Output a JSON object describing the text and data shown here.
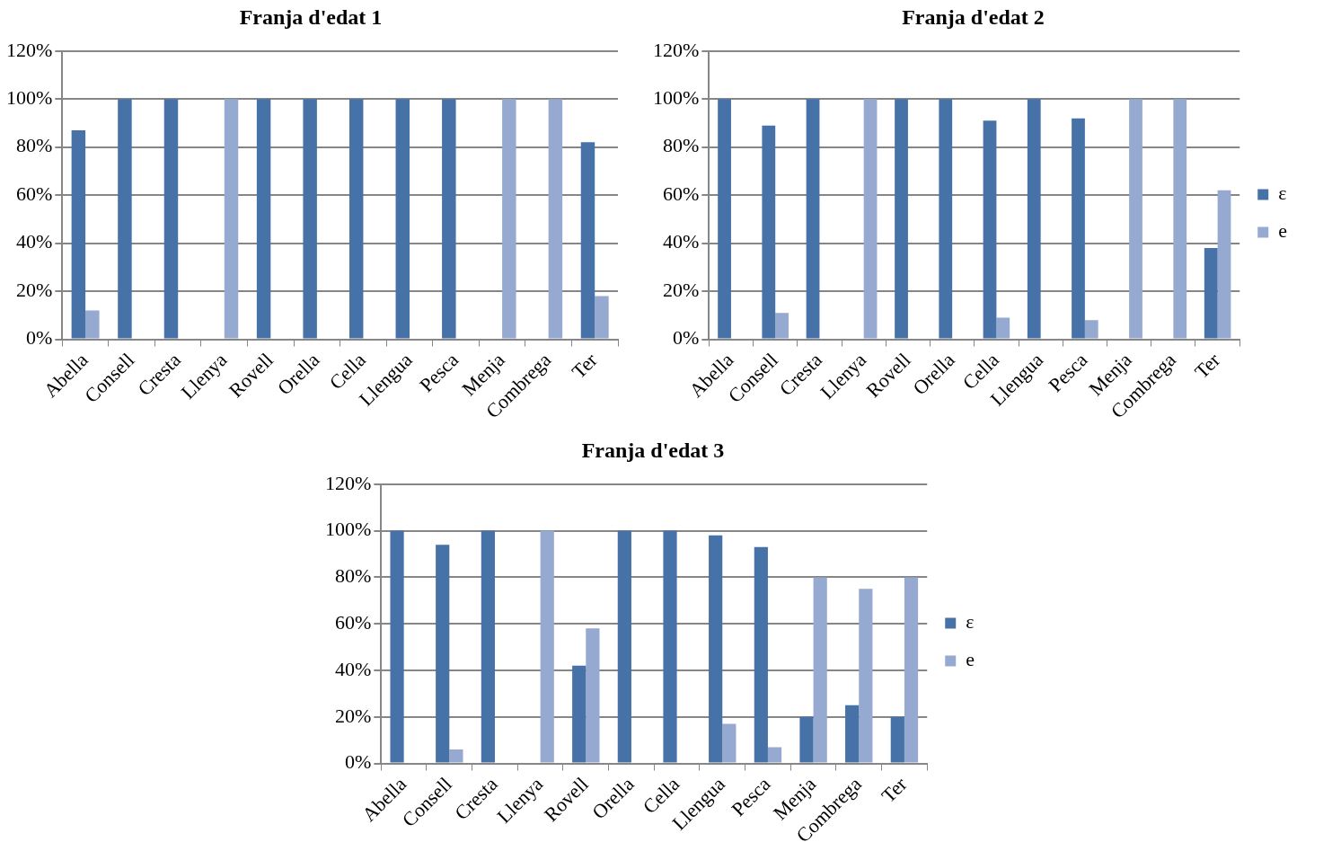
{
  "chart_data": [
    {
      "type": "bar",
      "title": "Franja d'edat 1",
      "categories": [
        "Abella",
        "Consell",
        "Cresta",
        "Llenya",
        "Rovell",
        "Orella",
        "Cella",
        "Llengua",
        "Pesca",
        "Menja",
        "Combrega",
        "Ter"
      ],
      "series": [
        {
          "color": "#4672a8",
          "values": [
            87,
            100,
            100,
            0,
            100,
            100,
            100,
            100,
            100,
            0,
            0,
            82
          ]
        },
        {
          "color": "#95a9d1",
          "values": [
            12,
            0,
            0,
            100,
            0,
            0,
            0,
            0,
            0,
            100,
            100,
            18
          ]
        }
      ],
      "ylim": [
        0,
        120
      ],
      "yticks": [
        {
          "value": 0,
          "label": "0%"
        },
        {
          "value": 20,
          "label": "20%"
        },
        {
          "value": 40,
          "label": "40%"
        },
        {
          "value": 60,
          "label": "60%"
        },
        {
          "value": 80,
          "label": "80%"
        },
        {
          "value": 100,
          "label": "100%"
        },
        {
          "value": 120,
          "label": "120%"
        }
      ],
      "grid": "y",
      "legend": false
    },
    {
      "type": "bar",
      "title": "Franja d'edat 2",
      "categories": [
        "Abella",
        "Consell",
        "Cresta",
        "Llenya",
        "Rovell",
        "Orella",
        "Cella",
        "Llengua",
        "Pesca",
        "Menja",
        "Combrega",
        "Ter"
      ],
      "series": [
        {
          "name": "ε",
          "color": "#4672a8",
          "values": [
            100,
            89,
            100,
            0,
            100,
            100,
            91,
            100,
            92,
            0,
            0,
            38
          ]
        },
        {
          "name": "e",
          "color": "#95a9d1",
          "values": [
            0,
            11,
            0,
            100,
            0,
            0,
            9,
            0,
            8,
            100,
            100,
            62
          ]
        }
      ],
      "ylim": [
        0,
        120
      ],
      "yticks": [
        {
          "value": 0,
          "label": "0%"
        },
        {
          "value": 20,
          "label": "20%"
        },
        {
          "value": 40,
          "label": "40%"
        },
        {
          "value": 60,
          "label": "60%"
        },
        {
          "value": 80,
          "label": "80%"
        },
        {
          "value": 100,
          "label": "100%"
        },
        {
          "value": 120,
          "label": "120%"
        }
      ],
      "grid": "y",
      "legend": "right"
    },
    {
      "type": "bar",
      "title": "Franja d'edat 3",
      "categories": [
        "Abella",
        "Consell",
        "Cresta",
        "Llenya",
        "Rovell",
        "Orella",
        "Cella",
        "Llengua",
        "Pesca",
        "Menja",
        "Combrega",
        "Ter"
      ],
      "series": [
        {
          "name": "ε",
          "color": "#4672a8",
          "values": [
            100,
            94,
            100,
            0,
            42,
            100,
            100,
            98,
            93,
            20,
            25,
            20
          ]
        },
        {
          "name": "e",
          "color": "#95a9d1",
          "values": [
            0,
            6,
            0,
            100,
            58,
            0,
            0,
            17,
            7,
            80,
            75,
            80
          ]
        }
      ],
      "ylim": [
        0,
        120
      ],
      "yticks": [
        {
          "value": 0,
          "label": "0%"
        },
        {
          "value": 20,
          "label": "20%"
        },
        {
          "value": 40,
          "label": "40%"
        },
        {
          "value": 60,
          "label": "60%"
        },
        {
          "value": 80,
          "label": "80%"
        },
        {
          "value": 100,
          "label": "100%"
        },
        {
          "value": 120,
          "label": "120%"
        }
      ],
      "grid": "y",
      "legend": "right"
    }
  ]
}
